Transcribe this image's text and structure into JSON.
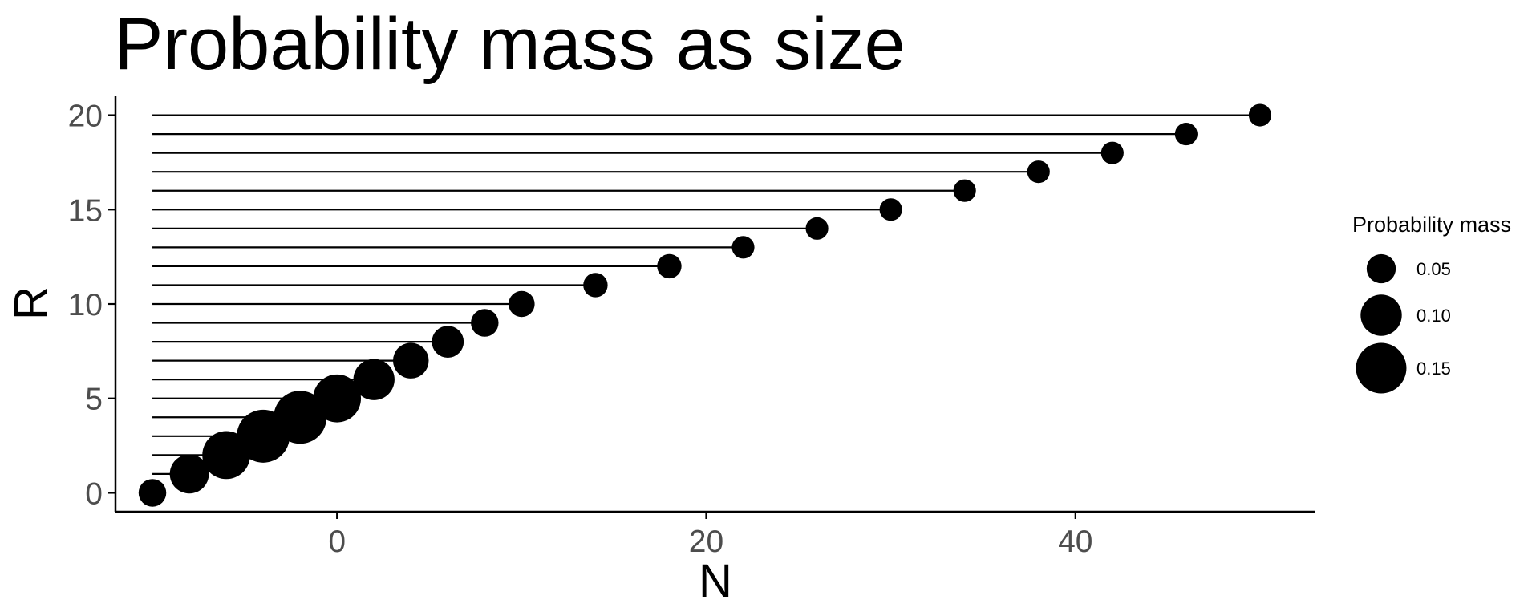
{
  "chart_data": {
    "type": "scatter",
    "title": "Probability mass as size",
    "xlabel": "N",
    "ylabel": "R",
    "xlim": [
      -12,
      53
    ],
    "ylim": [
      -1,
      21
    ],
    "x_ticks": [
      0,
      20,
      40
    ],
    "y_ticks": [
      0,
      5,
      10,
      15,
      20
    ],
    "grid": false,
    "segments_from_x": -10,
    "points": [
      {
        "n": -10,
        "r": 0,
        "mass": 0.045
      },
      {
        "n": -8,
        "r": 1,
        "mass": 0.09
      },
      {
        "n": -6,
        "r": 2,
        "mass": 0.135
      },
      {
        "n": -4,
        "r": 3,
        "mass": 0.165
      },
      {
        "n": -2,
        "r": 4,
        "mass": 0.165
      },
      {
        "n": 0,
        "r": 5,
        "mass": 0.135
      },
      {
        "n": 2,
        "r": 6,
        "mass": 0.1
      },
      {
        "n": 4,
        "r": 7,
        "mass": 0.075
      },
      {
        "n": 6,
        "r": 8,
        "mass": 0.06
      },
      {
        "n": 8,
        "r": 9,
        "mass": 0.045
      },
      {
        "n": 10,
        "r": 10,
        "mass": 0.04
      },
      {
        "n": 14,
        "r": 11,
        "mass": 0.035
      },
      {
        "n": 18,
        "r": 12,
        "mass": 0.035
      },
      {
        "n": 22,
        "r": 13,
        "mass": 0.03
      },
      {
        "n": 26,
        "r": 14,
        "mass": 0.03
      },
      {
        "n": 30,
        "r": 15,
        "mass": 0.03
      },
      {
        "n": 34,
        "r": 16,
        "mass": 0.03
      },
      {
        "n": 38,
        "r": 17,
        "mass": 0.03
      },
      {
        "n": 42,
        "r": 18,
        "mass": 0.03
      },
      {
        "n": 46,
        "r": 19,
        "mass": 0.03
      },
      {
        "n": 50,
        "r": 20,
        "mass": 0.03
      }
    ],
    "legend": {
      "title": "Probability mass",
      "placement": "right",
      "entries": [
        {
          "label": "0.05",
          "mass": 0.05
        },
        {
          "label": "0.10",
          "mass": 0.1
        },
        {
          "label": "0.15",
          "mass": 0.15
        }
      ]
    },
    "point_color": "#000000",
    "line_color": "#000000",
    "tick_label_color": "#4d4d4d"
  }
}
